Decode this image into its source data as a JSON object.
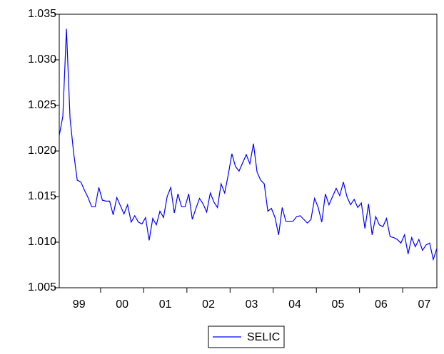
{
  "chart_data": {
    "type": "line",
    "categories": [
      null,
      null,
      null,
      null,
      null,
      null,
      "99",
      null,
      null,
      null,
      null,
      null,
      null,
      null,
      null,
      null,
      null,
      null,
      "00",
      null,
      null,
      null,
      null,
      null,
      null,
      null,
      null,
      null,
      null,
      null,
      "01",
      null,
      null,
      null,
      null,
      null,
      null,
      null,
      null,
      null,
      null,
      null,
      "02",
      null,
      null,
      null,
      null,
      null,
      null,
      null,
      null,
      null,
      null,
      null,
      "03",
      null,
      null,
      null,
      null,
      null,
      null,
      null,
      null,
      null,
      null,
      null,
      "04",
      null,
      null,
      null,
      null,
      null,
      null,
      null,
      null,
      null,
      null,
      null,
      "05",
      null,
      null,
      null,
      null,
      null,
      null,
      null,
      null,
      null,
      null,
      null,
      "06",
      null,
      null,
      null,
      null,
      null,
      null,
      null,
      null,
      null,
      null,
      null,
      "07",
      null,
      null,
      null
    ],
    "series": [
      {
        "name": "SELIC",
        "color": "#0000ff",
        "values": [
          1.0217,
          1.0238,
          1.0334,
          1.0236,
          1.0198,
          1.0168,
          1.0166,
          1.0157,
          1.0149,
          1.0139,
          1.0139,
          1.016,
          1.0146,
          1.0145,
          1.0145,
          1.013,
          1.0149,
          1.014,
          1.0131,
          1.0141,
          1.0122,
          1.0129,
          1.0122,
          1.012,
          1.0127,
          1.0102,
          1.0126,
          1.0119,
          1.0134,
          1.0127,
          1.015,
          1.016,
          1.0132,
          1.0153,
          1.0139,
          1.0139,
          1.0153,
          1.0125,
          1.0137,
          1.0148,
          1.0142,
          1.0133,
          1.0154,
          1.0144,
          1.0138,
          1.0164,
          1.0154,
          1.0174,
          1.0197,
          1.0183,
          1.0178,
          1.0187,
          1.0196,
          1.0186,
          1.0208,
          1.0177,
          1.0168,
          1.0164,
          1.0134,
          1.0137,
          1.0127,
          1.0108,
          1.0138,
          1.0123,
          1.0123,
          1.0123,
          1.0128,
          1.0129,
          1.0125,
          1.0121,
          1.0125,
          1.0148,
          1.0138,
          1.0122,
          1.0153,
          1.0141,
          1.015,
          1.0159,
          1.0151,
          1.0166,
          1.015,
          1.0141,
          1.0147,
          1.0138,
          1.0143,
          1.0115,
          1.0142,
          1.0108,
          1.0128,
          1.0119,
          1.0117,
          1.0126,
          1.0106,
          1.0105,
          1.0103,
          1.0099,
          1.0108,
          1.0087,
          1.0105,
          1.0095,
          1.0103,
          1.0091,
          1.0097,
          1.0099,
          1.0081,
          1.0093
        ]
      }
    ],
    "ylim": [
      1.005,
      1.035
    ],
    "yticks": [
      1.005,
      {
        "value": 1.01,
        "label": "1.010"
      },
      1.015,
      {
        "value": 1.02,
        "label": "1.020"
      },
      1.025,
      {
        "value": 1.03,
        "label": "1.030"
      },
      1.035
    ],
    "legend": "bottom"
  }
}
